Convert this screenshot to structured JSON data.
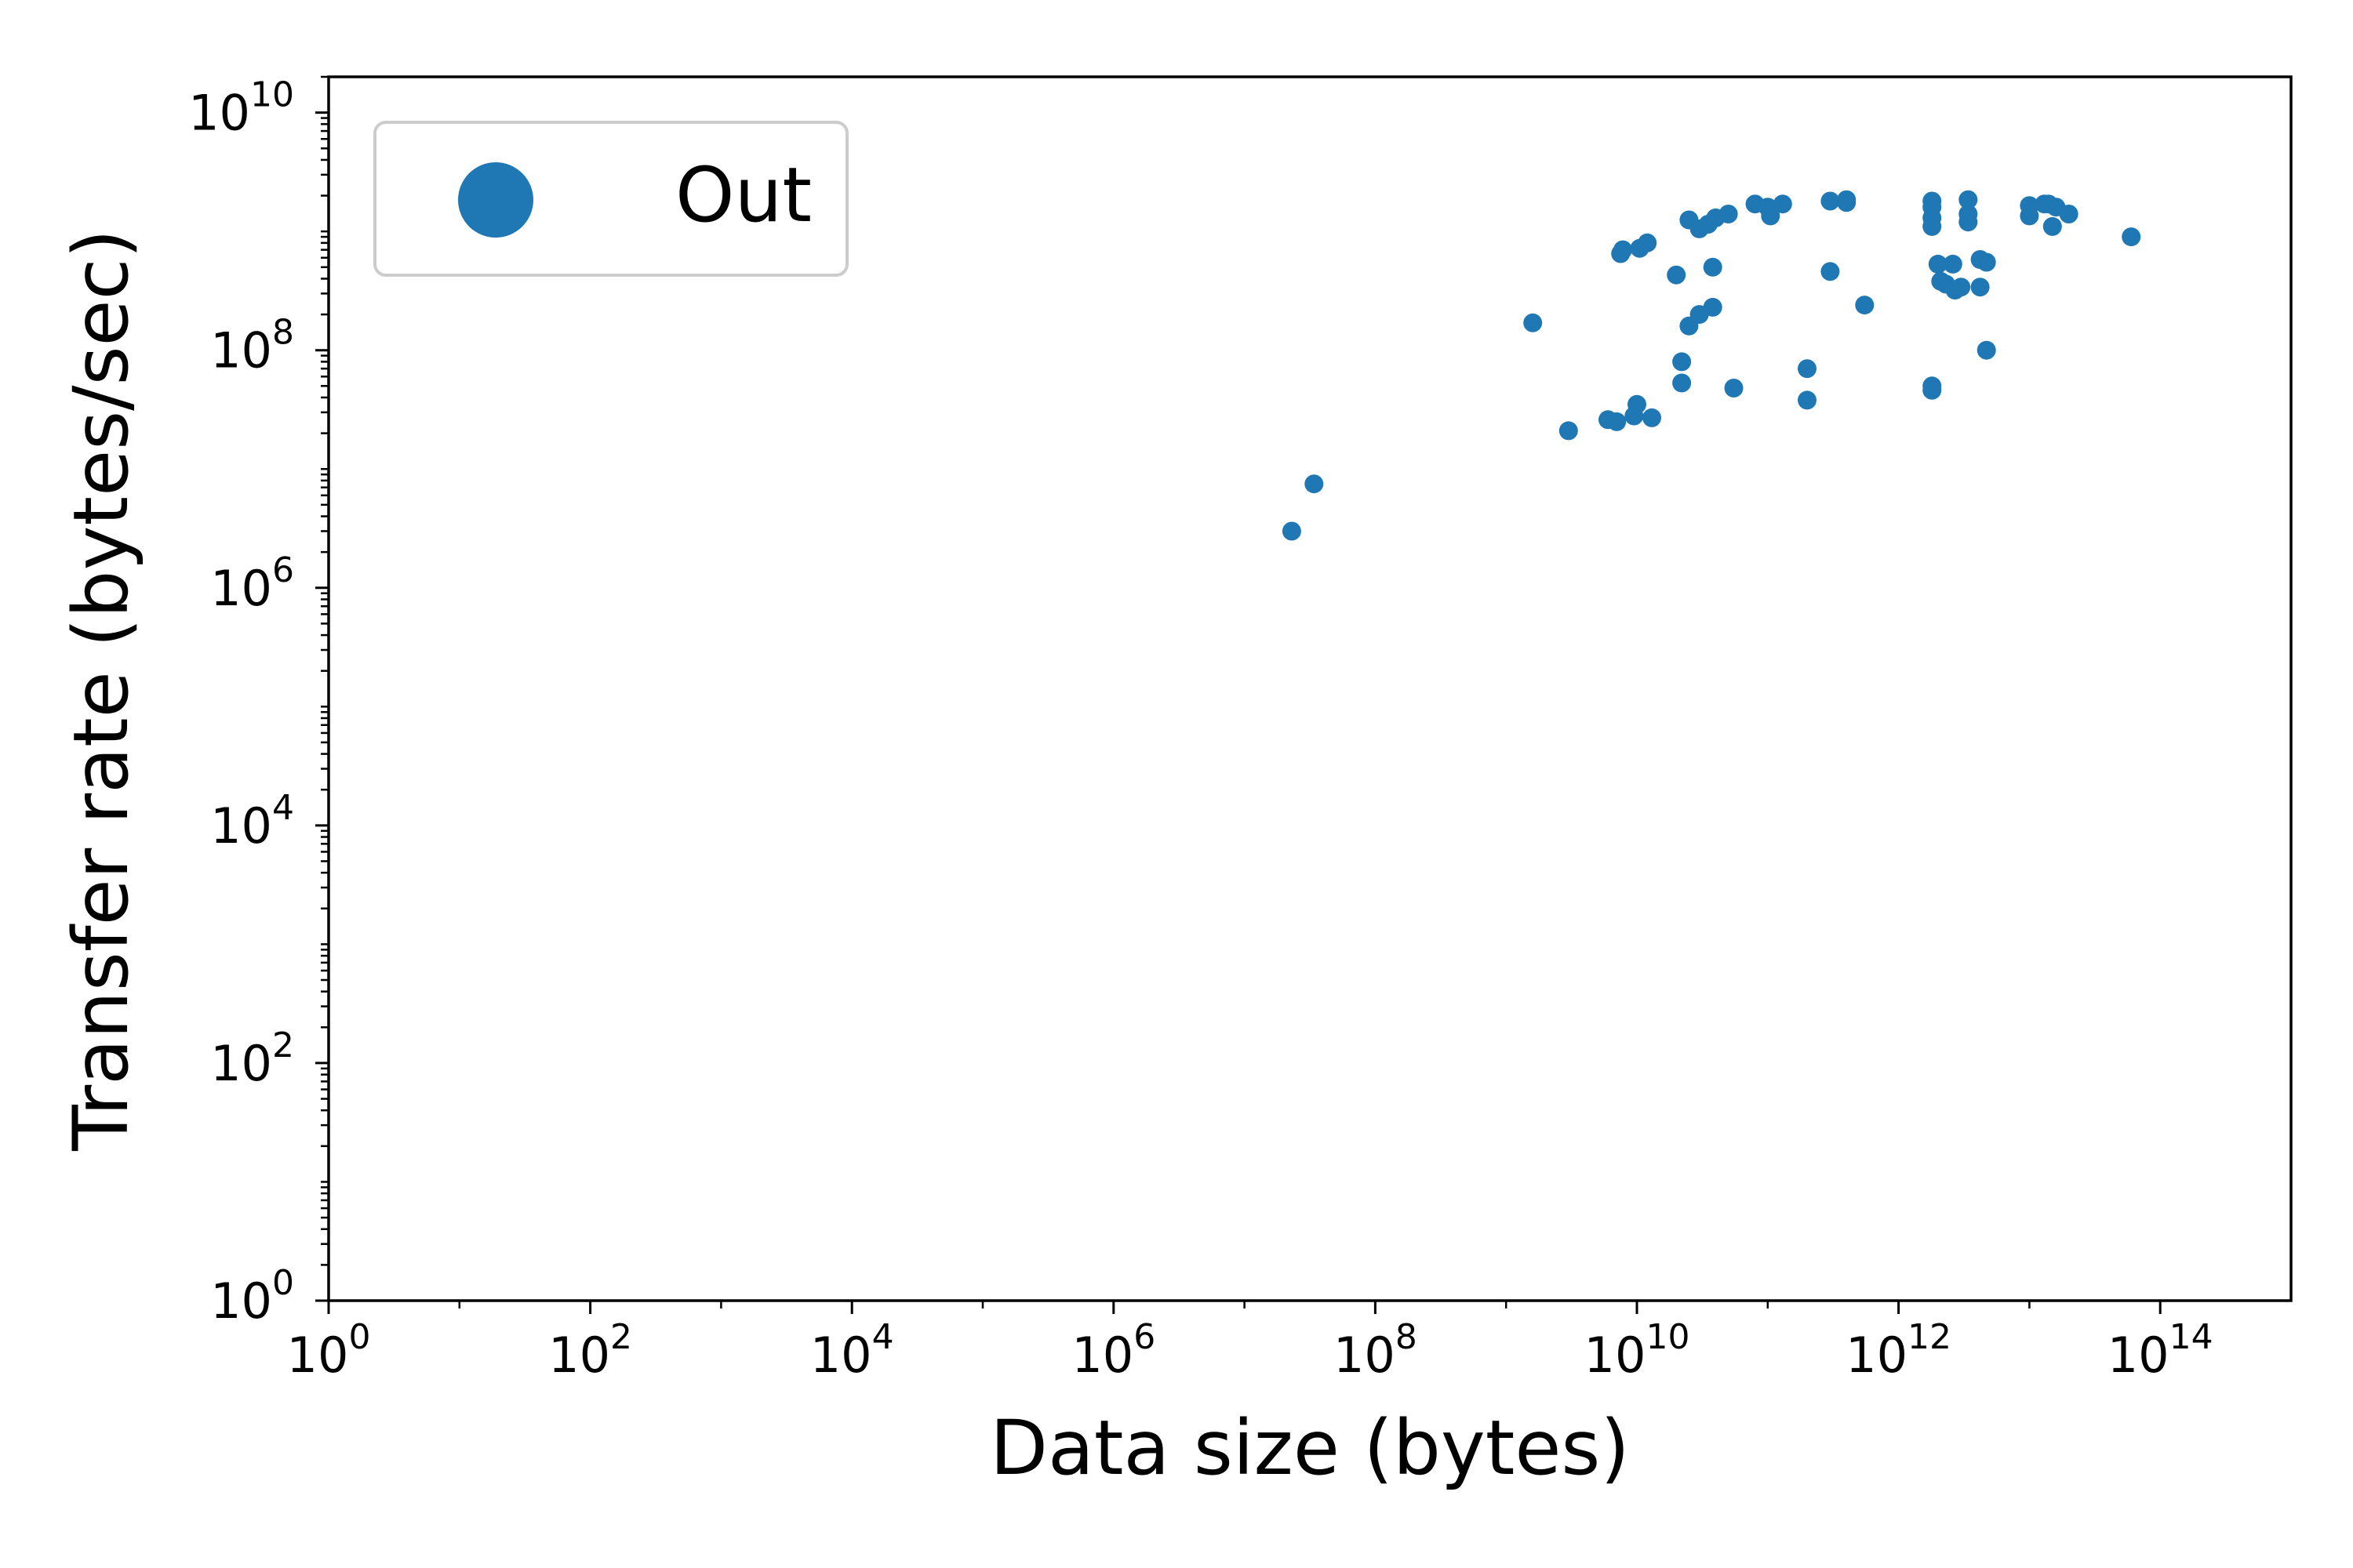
{
  "chart_data": {
    "type": "scatter",
    "xlabel": "Data size (bytes)",
    "ylabel": "Transfer rate (bytes/sec)",
    "xscale": "log",
    "yscale": "log",
    "xlim": [
      1,
      1000000000000000.0
    ],
    "ylim": [
      1,
      20000000000.0
    ],
    "xticks": [
      {
        "base": "10",
        "exp": "0",
        "value": 1
      },
      {
        "base": "10",
        "exp": "2",
        "value": 100
      },
      {
        "base": "10",
        "exp": "4",
        "value": 10000
      },
      {
        "base": "10",
        "exp": "6",
        "value": 1000000
      },
      {
        "base": "10",
        "exp": "8",
        "value": 100000000
      },
      {
        "base": "10",
        "exp": "10",
        "value": 10000000000
      },
      {
        "base": "10",
        "exp": "12",
        "value": 1000000000000
      },
      {
        "base": "10",
        "exp": "14",
        "value": 100000000000000
      }
    ],
    "yticks": [
      {
        "base": "10",
        "exp": "0",
        "value": 1
      },
      {
        "base": "10",
        "exp": "2",
        "value": 100
      },
      {
        "base": "10",
        "exp": "4",
        "value": 10000
      },
      {
        "base": "10",
        "exp": "6",
        "value": 1000000
      },
      {
        "base": "10",
        "exp": "8",
        "value": 100000000
      },
      {
        "base": "10",
        "exp": "10",
        "value": 10000000000
      }
    ],
    "grid": false,
    "legend_position": "top-left",
    "series": [
      {
        "name": "Out",
        "color": "#1f77b4",
        "points": [
          [
            23000000.0,
            3000000.0
          ],
          [
            34000000.0,
            7500000.0
          ],
          [
            1600000000.0,
            170000000.0
          ],
          [
            3000000000.0,
            21000000.0
          ],
          [
            6000000000.0,
            26000000.0
          ],
          [
            7000000000.0,
            25000000.0
          ],
          [
            7500000000.0,
            650000000.0
          ],
          [
            7800000000.0,
            700000000.0
          ],
          [
            9500000000.0,
            28000000.0
          ],
          [
            10000000000.0,
            35000000.0
          ],
          [
            10500000000.0,
            720000000.0
          ],
          [
            12000000000.0,
            800000000.0
          ],
          [
            13000000000.0,
            27000000.0
          ],
          [
            20000000000.0,
            430000000.0
          ],
          [
            22000000000.0,
            53000000.0
          ],
          [
            22000000000.0,
            80000000.0
          ],
          [
            25000000000.0,
            160000000.0
          ],
          [
            25000000000.0,
            1250000000.0
          ],
          [
            30000000000.0,
            200000000.0
          ],
          [
            30000000000.0,
            1050000000.0
          ],
          [
            35000000000.0,
            1150000000.0
          ],
          [
            38000000000.0,
            500000000.0
          ],
          [
            38000000000.0,
            230000000.0
          ],
          [
            40000000000.0,
            1300000000.0
          ],
          [
            50000000000.0,
            1400000000.0
          ],
          [
            55000000000.0,
            48000000.0
          ],
          [
            80000000000.0,
            1700000000.0
          ],
          [
            100000000000.0,
            1600000000.0
          ],
          [
            105000000000.0,
            1350000000.0
          ],
          [
            130000000000.0,
            1700000000.0
          ],
          [
            200000000000.0,
            70000000.0
          ],
          [
            200000000000.0,
            38000000.0
          ],
          [
            300000000000.0,
            1800000000.0
          ],
          [
            300000000000.0,
            460000000.0
          ],
          [
            400000000000.0,
            1750000000.0
          ],
          [
            400000000000.0,
            1850000000.0
          ],
          [
            550000000000.0,
            240000000.0
          ],
          [
            1800000000000.0,
            50000000.0
          ],
          [
            1800000000000.0,
            46000000.0
          ],
          [
            1800000000000.0,
            1100000000.0
          ],
          [
            1800000000000.0,
            1300000000.0
          ],
          [
            1800000000000.0,
            1600000000.0
          ],
          [
            1800000000000.0,
            1800000000.0
          ],
          [
            2000000000000.0,
            530000000.0
          ],
          [
            2100000000000.0,
            380000000.0
          ],
          [
            2300000000000.0,
            360000000.0
          ],
          [
            2600000000000.0,
            530000000.0
          ],
          [
            2700000000000.0,
            320000000.0
          ],
          [
            3000000000000.0,
            340000000.0
          ],
          [
            3400000000000.0,
            1200000000.0
          ],
          [
            3400000000000.0,
            1400000000.0
          ],
          [
            3400000000000.0,
            1850000000.0
          ],
          [
            4200000000000.0,
            340000000.0
          ],
          [
            4200000000000.0,
            580000000.0
          ],
          [
            4700000000000.0,
            550000000.0
          ],
          [
            4700000000000.0,
            100000000.0
          ],
          [
            10000000000000.0,
            1350000000.0
          ],
          [
            10000000000000.0,
            1650000000.0
          ],
          [
            13000000000000.0,
            1700000000.0
          ],
          [
            14000000000000.0,
            1700000000.0
          ],
          [
            15000000000000.0,
            1100000000.0
          ],
          [
            16000000000000.0,
            1600000000.0
          ],
          [
            20000000000000.0,
            1400000000.0
          ],
          [
            60000000000000.0,
            900000000.0
          ]
        ]
      }
    ]
  }
}
